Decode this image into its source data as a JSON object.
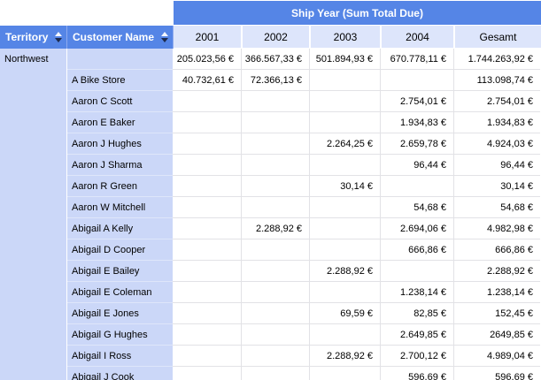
{
  "header": {
    "group_title": "Ship Year (Sum Total Due)",
    "territory_label": "Territory",
    "customer_label": "Customer Name",
    "year_columns": [
      "2001",
      "2002",
      "2003",
      "2004",
      "Gesamt"
    ]
  },
  "colors": {
    "header_blue": "#5585e6",
    "row_header_lavender": "#cbd7f8",
    "year_row_lavender": "#dde5fb"
  },
  "icons": {
    "territory_sort": "sort-arrows",
    "customer_sort": "sort-arrows"
  },
  "body": {
    "territory": "Northwest",
    "rows": [
      {
        "name": "",
        "values": [
          "205.023,56 €",
          "366.567,33 €",
          "501.894,93 €",
          "670.778,11 €",
          "1.744.263,92 €"
        ]
      },
      {
        "name": "A Bike Store",
        "values": [
          "40.732,61 €",
          "72.366,13 €",
          "",
          "",
          "113.098,74 €"
        ]
      },
      {
        "name": "Aaron C Scott",
        "values": [
          "",
          "",
          "",
          "2.754,01 €",
          "2.754,01 €"
        ]
      },
      {
        "name": "Aaron E Baker",
        "values": [
          "",
          "",
          "",
          "1.934,83 €",
          "1.934,83 €"
        ]
      },
      {
        "name": "Aaron J Hughes",
        "values": [
          "",
          "",
          "2.264,25 €",
          "2.659,78 €",
          "4.924,03 €"
        ]
      },
      {
        "name": "Aaron J Sharma",
        "values": [
          "",
          "",
          "",
          "96,44 €",
          "96,44 €"
        ]
      },
      {
        "name": "Aaron R Green",
        "values": [
          "",
          "",
          "30,14 €",
          "",
          "30,14 €"
        ]
      },
      {
        "name": "Aaron W Mitchell",
        "values": [
          "",
          "",
          "",
          "54,68 €",
          "54,68 €"
        ]
      },
      {
        "name": "Abigail A Kelly",
        "values": [
          "",
          "2.288,92 €",
          "",
          "2.694,06 €",
          "4.982,98 €"
        ]
      },
      {
        "name": "Abigail D Cooper",
        "values": [
          "",
          "",
          "",
          "666,86 €",
          "666,86 €"
        ]
      },
      {
        "name": "Abigail E Bailey",
        "values": [
          "",
          "",
          "2.288,92 €",
          "",
          "2.288,92 €"
        ]
      },
      {
        "name": "Abigail E Coleman",
        "values": [
          "",
          "",
          "",
          "1.238,14 €",
          "1.238,14 €"
        ]
      },
      {
        "name": "Abigail E Jones",
        "values": [
          "",
          "",
          "69,59 €",
          "82,85 €",
          "152,45 €"
        ]
      },
      {
        "name": "Abigail G Hughes",
        "values": [
          "",
          "",
          "",
          "2.649,85 €",
          "2649,85 €"
        ]
      },
      {
        "name": "Abigail I Ross",
        "values": [
          "",
          "",
          "2.288,92 €",
          "2.700,12 €",
          "4.989,04 €"
        ]
      },
      {
        "name": "Abigail J Cook",
        "values": [
          "",
          "",
          "",
          "596,69 €",
          "596,69 €"
        ]
      }
    ]
  }
}
